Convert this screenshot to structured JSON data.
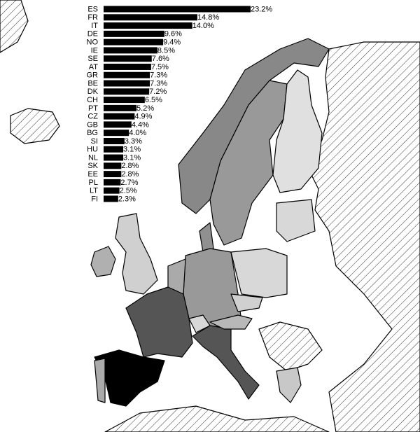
{
  "chart_data": {
    "type": "bar",
    "orientation": "horizontal",
    "color": "#000000",
    "categories": [
      "ES",
      "FR",
      "IT",
      "DE",
      "NO",
      "IE",
      "SE",
      "AT",
      "GR",
      "BE",
      "DK",
      "CH",
      "PT",
      "CZ",
      "GB",
      "BG",
      "SI",
      "HU",
      "NL",
      "SK",
      "EE",
      "PL",
      "LT",
      "FI"
    ],
    "values": [
      23.2,
      14.8,
      14.0,
      9.6,
      9.4,
      8.5,
      7.6,
      7.5,
      7.3,
      7.3,
      7.2,
      6.5,
      5.2,
      4.9,
      4.4,
      4.0,
      3.3,
      3.1,
      3.1,
      2.8,
      2.8,
      2.7,
      2.5,
      2.3
    ],
    "value_labels": [
      "23.2%",
      "14.8%",
      "14.0%",
      "9.6%",
      "9.4%",
      "8.5%",
      "7.6%",
      "7.5%",
      "7.3%",
      "7.3%",
      "7.2%",
      "6.5%",
      "5.2%",
      "4.9%",
      "4.4%",
      "4.0%",
      "3.3%",
      "3.1%",
      "3.1%",
      "2.8%",
      "2.8%",
      "2.7%",
      "2.5%",
      "2.3%"
    ]
  }
}
